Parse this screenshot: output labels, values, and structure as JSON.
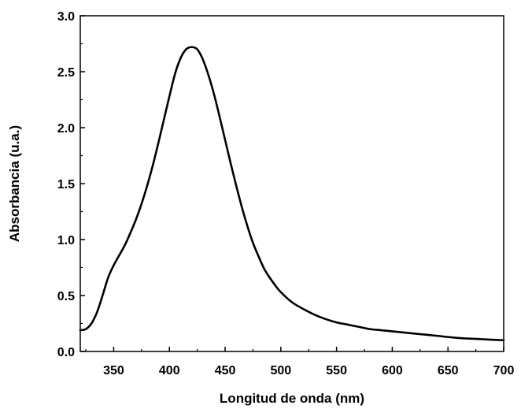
{
  "chart_data": {
    "type": "line",
    "title": "",
    "xlabel": "Longitud de onda (nm)",
    "ylabel": "Absorbancia (u.a.)",
    "xlim": [
      320,
      700
    ],
    "ylim": [
      0.0,
      3.0
    ],
    "x_ticks": [
      350,
      400,
      450,
      500,
      550,
      600,
      650,
      700
    ],
    "x_tick_labels": [
      "350",
      "400",
      "450",
      "500",
      "550",
      "600",
      "650",
      "700"
    ],
    "y_ticks": [
      0.0,
      0.5,
      1.0,
      1.5,
      2.0,
      2.5,
      3.0
    ],
    "y_tick_labels": [
      "0.0",
      "0.5",
      "1.0",
      "1.5",
      "2.0",
      "2.5",
      "3.0"
    ],
    "grid": false,
    "legend": "none",
    "line_color": "#000000",
    "series": [
      {
        "x": [
          320,
          325,
          330,
          335,
          340,
          345,
          350,
          355,
          360,
          365,
          370,
          375,
          380,
          385,
          390,
          395,
          400,
          405,
          410,
          415,
          420,
          425,
          430,
          435,
          440,
          445,
          450,
          455,
          460,
          465,
          470,
          475,
          480,
          485,
          490,
          495,
          500,
          510,
          520,
          530,
          540,
          550,
          560,
          570,
          580,
          590,
          600,
          620,
          640,
          660,
          680,
          700
        ],
        "values": [
          0.19,
          0.2,
          0.25,
          0.35,
          0.5,
          0.66,
          0.77,
          0.86,
          0.95,
          1.06,
          1.18,
          1.32,
          1.48,
          1.66,
          1.86,
          2.07,
          2.28,
          2.48,
          2.62,
          2.7,
          2.72,
          2.7,
          2.61,
          2.47,
          2.3,
          2.1,
          1.89,
          1.68,
          1.48,
          1.29,
          1.12,
          0.97,
          0.85,
          0.74,
          0.66,
          0.59,
          0.53,
          0.44,
          0.38,
          0.33,
          0.29,
          0.26,
          0.24,
          0.22,
          0.2,
          0.19,
          0.18,
          0.16,
          0.14,
          0.12,
          0.11,
          0.1
        ]
      }
    ]
  }
}
